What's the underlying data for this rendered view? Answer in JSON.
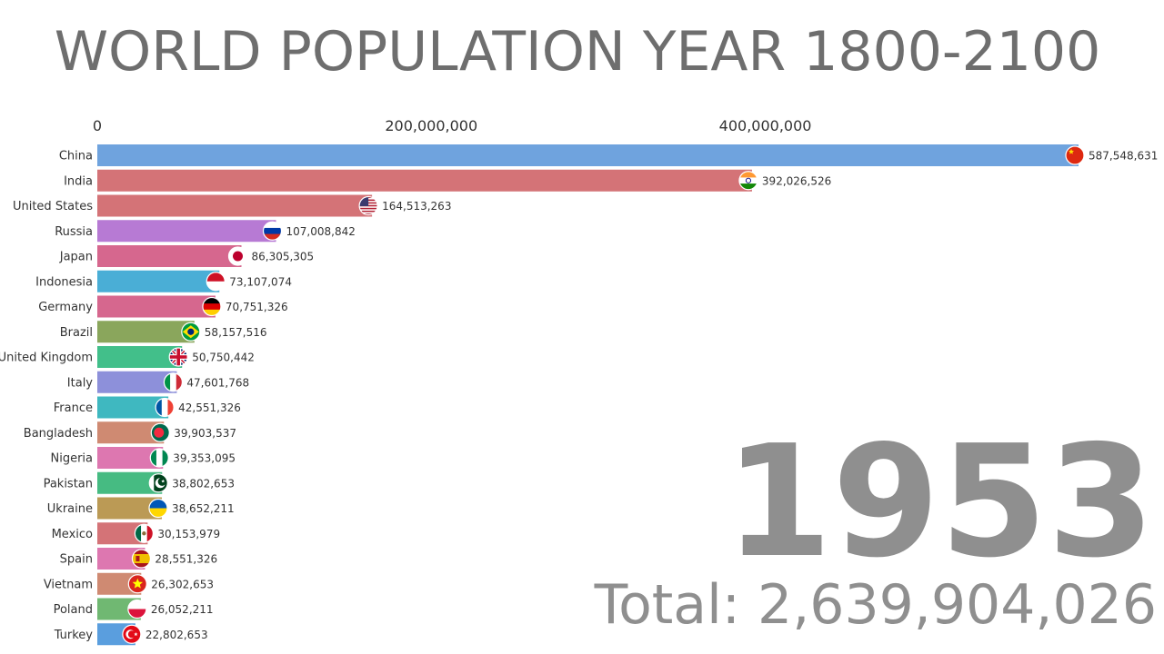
{
  "title": "WORLD POPULATION YEAR 1800-2100",
  "year": "1953",
  "total_label": "Total:",
  "total_value": "2,639,904,026",
  "chart_data": {
    "type": "bar",
    "orientation": "horizontal",
    "title": "WORLD POPULATION YEAR 1800-2100",
    "x_ticks": [
      0,
      200000000,
      400000000
    ],
    "x_tick_labels": [
      "0",
      "200,000,000",
      "400,000,000"
    ],
    "xlim": [
      0,
      587548631
    ],
    "categories": [
      "China",
      "India",
      "United States",
      "Russia",
      "Japan",
      "Indonesia",
      "Germany",
      "Brazil",
      "United Kingdom",
      "Italy",
      "France",
      "Bangladesh",
      "Nigeria",
      "Pakistan",
      "Ukraine",
      "Mexico",
      "Spain",
      "Vietnam",
      "Poland",
      "Turkey"
    ],
    "values": [
      587548631,
      392026526,
      164513263,
      107008842,
      86305305,
      73107074,
      70751326,
      58157516,
      50750442,
      47601768,
      42551326,
      39903537,
      39353095,
      38802653,
      38652211,
      30153979,
      28551326,
      26302653,
      26052211,
      22802653
    ],
    "value_labels": [
      "587,548,631",
      "392,026,526",
      "164,513,263",
      "107,008,842",
      "86,305,305",
      "73,107,074",
      "70,751,326",
      "58,157,516",
      "50,750,442",
      "47,601,768",
      "42,551,326",
      "39,903,537",
      "39,353,095",
      "38,802,653",
      "38,652,211",
      "30,153,979",
      "28,551,326",
      "26,302,653",
      "26,052,211",
      "22,802,653"
    ],
    "colors": [
      "#6fa3de",
      "#d47377",
      "#d47377",
      "#b77ad4",
      "#d6678e",
      "#4aaed6",
      "#d6678e",
      "#8aa65c",
      "#42bf8a",
      "#8d90da",
      "#3fb8c0",
      "#cf8a72",
      "#dd77b0",
      "#46bb82",
      "#bb9a55",
      "#d47377",
      "#dd77b0",
      "#cf8a72",
      "#70b872",
      "#5a9ede"
    ],
    "flags": [
      "china-flag-icon",
      "india-flag-icon",
      "usa-flag-icon",
      "russia-flag-icon",
      "japan-flag-icon",
      "indonesia-flag-icon",
      "germany-flag-icon",
      "brazil-flag-icon",
      "uk-flag-icon",
      "italy-flag-icon",
      "france-flag-icon",
      "bangladesh-flag-icon",
      "nigeria-flag-icon",
      "pakistan-flag-icon",
      "ukraine-flag-icon",
      "mexico-flag-icon",
      "spain-flag-icon",
      "vietnam-flag-icon",
      "poland-flag-icon",
      "turkey-flag-icon"
    ]
  }
}
